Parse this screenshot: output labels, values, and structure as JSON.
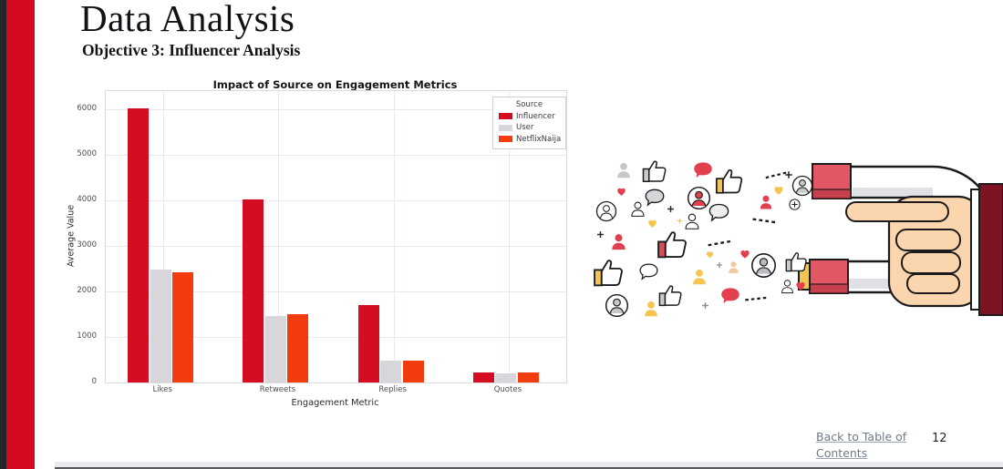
{
  "slide": {
    "title": "Data Analysis",
    "subtitle": "Objective 3: Influencer Analysis",
    "page_number": "12",
    "back_link_label": "Back to Table of Contents"
  },
  "chart_data": {
    "type": "bar",
    "title": "Impact of Source on Engagement Metrics",
    "xlabel": "Engagement Metric",
    "ylabel": "Average Value",
    "categories": [
      "Likes",
      "Retweets",
      "Replies",
      "Quotes"
    ],
    "series": [
      {
        "name": "Influencer",
        "color": "#d40d22",
        "values": [
          6020,
          4030,
          1700,
          230
        ]
      },
      {
        "name": "User",
        "color": "#d8d6db",
        "values": [
          2480,
          1470,
          480,
          210
        ]
      },
      {
        "name": "NetflixNaija",
        "color": "#f23c0e",
        "values": [
          2420,
          1500,
          490,
          230
        ]
      }
    ],
    "legend_title": "Source",
    "legend_position": "upper right",
    "ylim": [
      0,
      6400
    ],
    "yticks": [
      0,
      1000,
      2000,
      3000,
      4000,
      5000,
      6000
    ],
    "grid": true
  },
  "illustration": {
    "name": "social-engagement-magnet",
    "description": "Hand with horseshoe magnet attracting social engagement icons",
    "icons": [
      "thumbs-up-icon",
      "user-avatar-icon",
      "user-circle-icon",
      "heart-icon",
      "speech-bubble-icon",
      "plus-icon",
      "magnet",
      "hand",
      "sleeve"
    ],
    "accent_colors": {
      "red": "#e2404f",
      "yellow": "#f5c64f",
      "gray": "#c9cbd0",
      "skin": "#fbd5ad",
      "magnet_red": "#e25763",
      "sleeve": "#7e1324"
    }
  },
  "theme": {
    "sidebar_red": "#d60a1e",
    "edge_dark": "#23262b",
    "link_color": "#6f7a8a"
  }
}
